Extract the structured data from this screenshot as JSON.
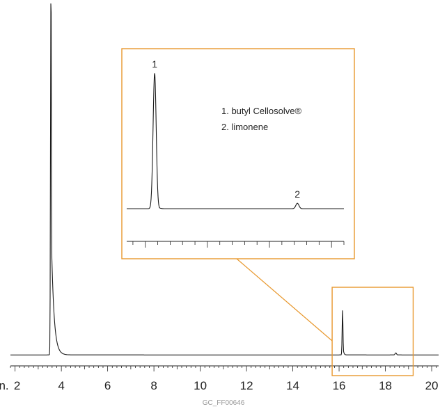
{
  "chart_data": {
    "type": "line",
    "xlabel": "min.",
    "x_ticks": [
      2,
      4,
      6,
      8,
      10,
      12,
      14,
      16,
      18,
      20
    ],
    "xlim": [
      1.8,
      20.3
    ],
    "ylim": [
      0,
      100
    ],
    "grid": false,
    "baseline": 1.0,
    "peaks": [
      {
        "x": 3.55,
        "height": 120,
        "sigma": 0.018,
        "tail": 0.11
      },
      {
        "x": 16.15,
        "height": 13.5,
        "sigma": 0.018,
        "tail": 0.03
      },
      {
        "x": 18.45,
        "height": 0.6,
        "sigma": 0.03,
        "tail": 0.0
      }
    ],
    "source_code": "GC_FF00646",
    "inset": {
      "zoom_xlim": [
        15.7,
        19.2
      ],
      "peaks": [
        {
          "label": "1",
          "x": 16.15,
          "height": 100
        },
        {
          "label": "2",
          "x": 18.45,
          "height": 4
        }
      ],
      "legend": [
        "1. butyl Cellosolve®",
        "2. limonene"
      ],
      "box_color": "#E8982E"
    },
    "line_color": "#1a1a1a"
  }
}
